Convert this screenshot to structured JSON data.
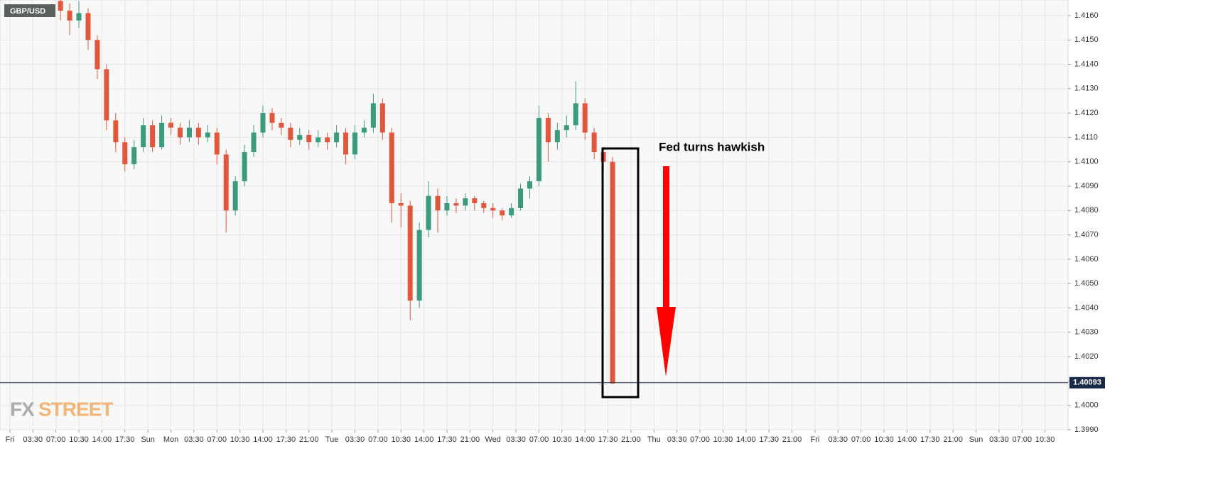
{
  "chart_data": {
    "type": "candlestick",
    "title": "GBP/USD",
    "annotation": "Fed turns hawkish",
    "watermark": {
      "left": "FX",
      "right": "STREET"
    },
    "current_price": 1.40093,
    "up_color": "#3b9b7c",
    "down_color": "#e2573c",
    "price_line_color": "#1c2a4a",
    "grid": true,
    "xlim": [
      -0.43,
      46.0
    ],
    "ylim": [
      1.399,
      1.41664
    ],
    "xticks": [
      {
        "value": 0,
        "label": "Fri"
      },
      {
        "value": 1,
        "label": "03:30"
      },
      {
        "value": 2,
        "label": "07:00"
      },
      {
        "value": 3,
        "label": "10:30"
      },
      {
        "value": 4,
        "label": "14:00"
      },
      {
        "value": 5,
        "label": "17:30"
      },
      {
        "value": 6,
        "label": "Sun"
      },
      {
        "value": 7,
        "label": "Mon"
      },
      {
        "value": 8,
        "label": "03:30"
      },
      {
        "value": 9,
        "label": "07:00"
      },
      {
        "value": 10,
        "label": "10:30"
      },
      {
        "value": 11,
        "label": "14:00"
      },
      {
        "value": 12,
        "label": "17:30"
      },
      {
        "value": 13,
        "label": "21:00"
      },
      {
        "value": 14,
        "label": "Tue"
      },
      {
        "value": 15,
        "label": "03:30"
      },
      {
        "value": 16,
        "label": "07:00"
      },
      {
        "value": 17,
        "label": "10:30"
      },
      {
        "value": 18,
        "label": "14:00"
      },
      {
        "value": 19,
        "label": "17:30"
      },
      {
        "value": 20,
        "label": "21:00"
      },
      {
        "value": 21,
        "label": "Wed"
      },
      {
        "value": 22,
        "label": "03:30"
      },
      {
        "value": 23,
        "label": "07:00"
      },
      {
        "value": 24,
        "label": "10:30"
      },
      {
        "value": 25,
        "label": "14:00"
      },
      {
        "value": 26,
        "label": "17:30"
      },
      {
        "value": 27,
        "label": "21:00"
      },
      {
        "value": 28,
        "label": "Thu"
      },
      {
        "value": 29,
        "label": "03:30"
      },
      {
        "value": 30,
        "label": "07:00"
      },
      {
        "value": 31,
        "label": "10:30"
      },
      {
        "value": 32,
        "label": "14:00"
      },
      {
        "value": 33,
        "label": "17:30"
      },
      {
        "value": 34,
        "label": "21:00"
      },
      {
        "value": 35,
        "label": "Fri"
      },
      {
        "value": 36,
        "label": "03:30"
      },
      {
        "value": 37,
        "label": "07:00"
      },
      {
        "value": 38,
        "label": "10:30"
      },
      {
        "value": 39,
        "label": "14:00"
      },
      {
        "value": 40,
        "label": "17:30"
      },
      {
        "value": 41,
        "label": "21:00"
      },
      {
        "value": 42,
        "label": "Sun"
      },
      {
        "value": 43,
        "label": "03:30"
      },
      {
        "value": 44,
        "label": "07:00"
      },
      {
        "value": 45,
        "label": "10:30"
      }
    ],
    "yticks": [
      {
        "value": 1.399,
        "label": "1.3990"
      },
      {
        "value": 1.4,
        "label": "1.4000"
      },
      {
        "value": 1.401,
        "label": "1.4010"
      },
      {
        "value": 1.402,
        "label": "1.4020"
      },
      {
        "value": 1.403,
        "label": "1.4030"
      },
      {
        "value": 1.404,
        "label": "1.4040"
      },
      {
        "value": 1.405,
        "label": "1.4050"
      },
      {
        "value": 1.406,
        "label": "1.4060"
      },
      {
        "value": 1.407,
        "label": "1.4070"
      },
      {
        "value": 1.408,
        "label": "1.4080"
      },
      {
        "value": 1.409,
        "label": "1.4090"
      },
      {
        "value": 1.41,
        "label": "1.4100"
      },
      {
        "value": 1.411,
        "label": "1.4110"
      },
      {
        "value": 1.412,
        "label": "1.4120"
      },
      {
        "value": 1.413,
        "label": "1.4130"
      },
      {
        "value": 1.414,
        "label": "1.4140"
      },
      {
        "value": 1.415,
        "label": "1.4150"
      },
      {
        "value": 1.416,
        "label": "1.4160"
      }
    ],
    "x": [
      2.2,
      2.6,
      3.0,
      3.4,
      3.8,
      4.2,
      4.6,
      5.0,
      5.4,
      5.8,
      6.2,
      6.6,
      7.0,
      7.4,
      7.8,
      8.2,
      8.6,
      9.0,
      9.4,
      9.8,
      10.2,
      10.6,
      11.0,
      11.4,
      11.8,
      12.2,
      12.6,
      13.0,
      13.4,
      13.8,
      14.2,
      14.6,
      15.0,
      15.4,
      15.8,
      16.2,
      16.6,
      17.0,
      17.4,
      17.8,
      18.2,
      18.6,
      19.0,
      19.4,
      19.8,
      20.2,
      20.6,
      21.0,
      21.4,
      21.8,
      22.2,
      22.6,
      23.0,
      23.4,
      23.8,
      24.2,
      24.6,
      25.0,
      25.4,
      25.8,
      26.2
    ],
    "open": [
      1.4166,
      1.4162,
      1.4158,
      1.4161,
      1.415,
      1.4138,
      1.4117,
      1.4108,
      1.4099,
      1.4106,
      1.4115,
      1.4106,
      1.4116,
      1.4114,
      1.411,
      1.4114,
      1.411,
      1.4112,
      1.4103,
      1.408,
      1.4092,
      1.4104,
      1.4112,
      1.412,
      1.4116,
      1.4114,
      1.4109,
      1.4111,
      1.4108,
      1.411,
      1.4108,
      1.4112,
      1.4103,
      1.4112,
      1.4114,
      1.4124,
      1.4112,
      1.4083,
      1.4082,
      1.4043,
      1.4072,
      1.4086,
      1.408,
      1.4083,
      1.4082,
      1.4085,
      1.4083,
      1.4081,
      1.408,
      1.4078,
      1.4081,
      1.4089,
      1.4092,
      1.4118,
      1.4108,
      1.4113,
      1.4115,
      1.4124,
      1.4112,
      1.4104,
      1.41
    ],
    "high": [
      1.4168,
      1.4165,
      1.4166,
      1.4163,
      1.4152,
      1.414,
      1.412,
      1.411,
      1.4109,
      1.4118,
      1.4117,
      1.4119,
      1.4118,
      1.4116,
      1.4117,
      1.4116,
      1.4115,
      1.4114,
      1.4105,
      1.4094,
      1.4107,
      1.4115,
      1.4123,
      1.4122,
      1.4118,
      1.4116,
      1.4114,
      1.4113,
      1.4113,
      1.4112,
      1.4115,
      1.4114,
      1.4115,
      1.4117,
      1.4128,
      1.4126,
      1.4114,
      1.4087,
      1.4084,
      1.4075,
      1.4092,
      1.4089,
      1.4086,
      1.4085,
      1.4087,
      1.4086,
      1.4084,
      1.4083,
      1.4081,
      1.4083,
      1.4091,
      1.4094,
      1.4123,
      1.412,
      1.4116,
      1.4119,
      1.4133,
      1.4126,
      1.4114,
      1.4106,
      1.4102
    ],
    "low": [
      1.4158,
      1.4152,
      1.4155,
      1.4146,
      1.4134,
      1.4113,
      1.4104,
      1.4096,
      1.4097,
      1.4104,
      1.4104,
      1.4105,
      1.4111,
      1.4107,
      1.4108,
      1.4107,
      1.4108,
      1.4099,
      1.4071,
      1.4078,
      1.409,
      1.4102,
      1.411,
      1.4113,
      1.4111,
      1.4106,
      1.4107,
      1.4105,
      1.4106,
      1.4105,
      1.4106,
      1.4099,
      1.4101,
      1.411,
      1.4112,
      1.4109,
      1.4075,
      1.4073,
      1.4035,
      1.404,
      1.4069,
      1.4071,
      1.4078,
      1.4079,
      1.408,
      1.408,
      1.4079,
      1.4077,
      1.4076,
      1.4077,
      1.408,
      1.4085,
      1.409,
      1.41,
      1.4105,
      1.411,
      1.4113,
      1.4109,
      1.4101,
      1.4097,
      1.4009
    ],
    "close": [
      1.4162,
      1.4158,
      1.4161,
      1.415,
      1.4138,
      1.4117,
      1.4108,
      1.4099,
      1.4106,
      1.4115,
      1.4106,
      1.4116,
      1.4114,
      1.411,
      1.4114,
      1.411,
      1.4112,
      1.4103,
      1.408,
      1.4092,
      1.4104,
      1.4112,
      1.412,
      1.4116,
      1.4114,
      1.4109,
      1.4111,
      1.4108,
      1.411,
      1.4108,
      1.4112,
      1.4103,
      1.4112,
      1.4114,
      1.4124,
      1.4112,
      1.4083,
      1.4082,
      1.4043,
      1.4072,
      1.4086,
      1.408,
      1.4083,
      1.4082,
      1.4085,
      1.4083,
      1.4081,
      1.408,
      1.4078,
      1.4081,
      1.4089,
      1.4092,
      1.4118,
      1.4108,
      1.4113,
      1.4115,
      1.4124,
      1.4112,
      1.4104,
      1.41,
      1.4009
    ]
  }
}
